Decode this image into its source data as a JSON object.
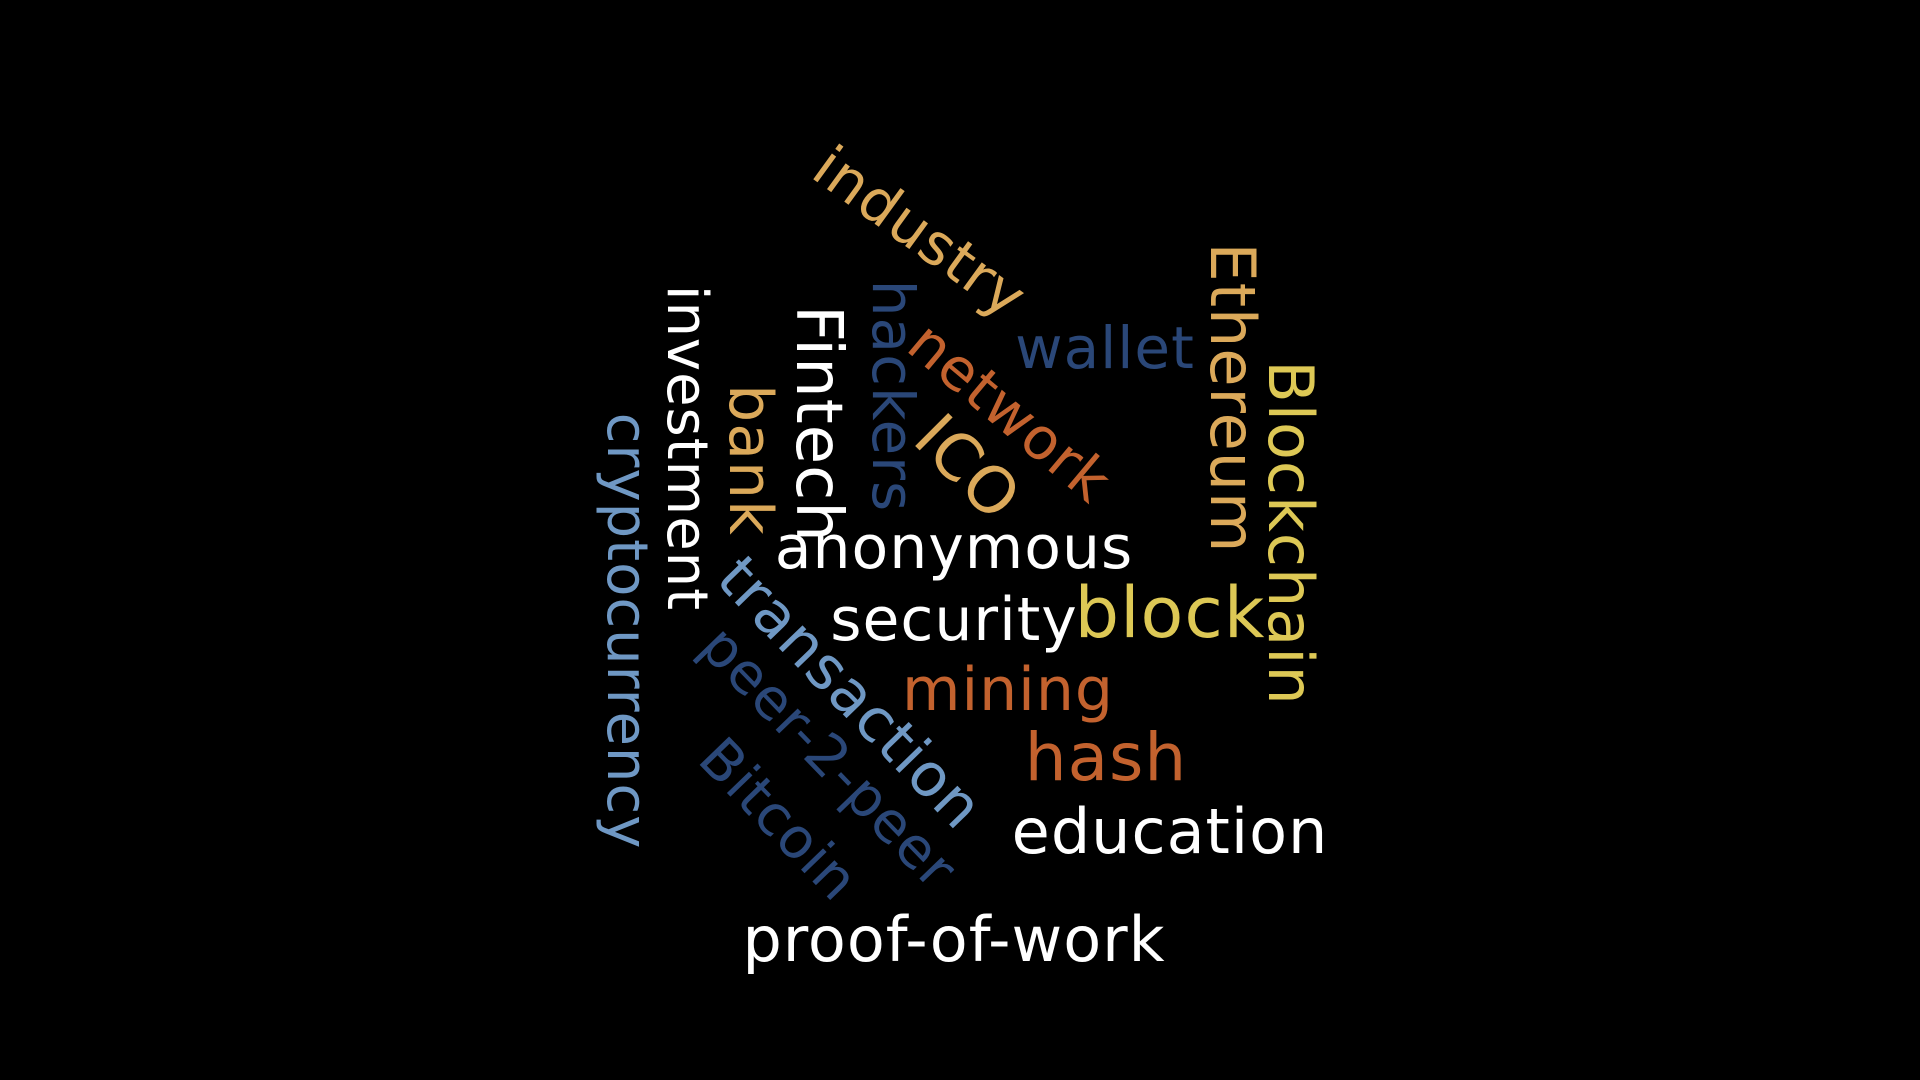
{
  "colors": {
    "background": "#000000",
    "white": "#ffffff",
    "gold": "#dba95a",
    "yellow": "#ddc855",
    "orange": "#c3622e",
    "navy": "#2a4778",
    "steel_blue": "#6f98c4"
  },
  "words": {
    "industry": "industry",
    "wallet": "wallet",
    "ethereum": "Ethereum",
    "blockchain": "Blockchain",
    "network": "network",
    "hackers": "hackers",
    "fintech": "Fintech",
    "investment": "investment",
    "bank": "bank",
    "ico": "ICO",
    "cryptocurrency": "cryptocurrency",
    "anonymous": "anonymous",
    "security": "security",
    "block": "block",
    "transaction": "transaction",
    "peer_2_peer": "peer-2-peer",
    "mining": "mining",
    "hash": "hash",
    "bitcoin": "Bitcoin",
    "education": "education",
    "proof_of_work": "proof-of-work"
  }
}
